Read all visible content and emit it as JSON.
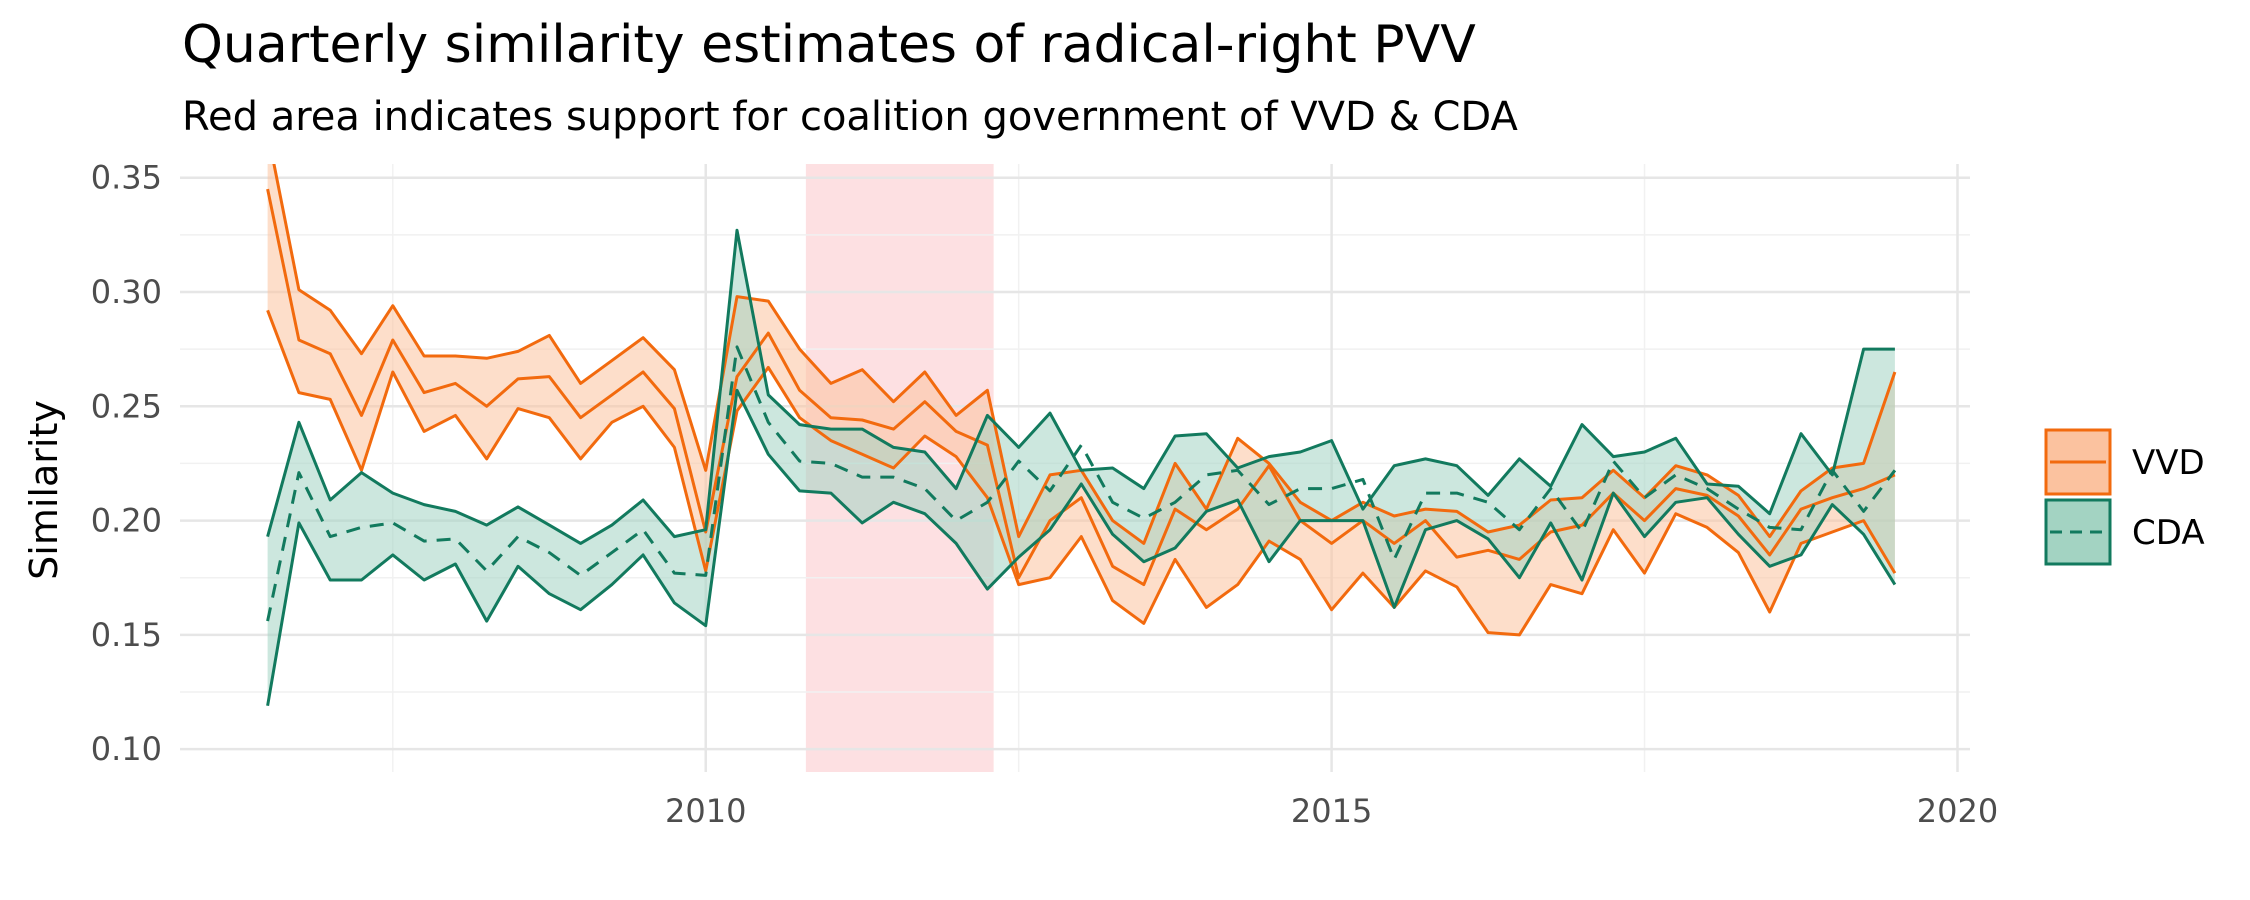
{
  "chart_data": {
    "type": "area",
    "title": "Quarterly similarity estimates of radical-right PVV",
    "subtitle": "Red area indicates support for coalition government of VVD & CDA",
    "xlabel": "",
    "ylabel": "Similarity",
    "xlim": [
      2005.8,
      2020.1
    ],
    "ylim": [
      0.09,
      0.356
    ],
    "x_ticks": [
      2010,
      2015,
      2020
    ],
    "x_tick_labels": [
      "2010",
      "2015",
      "2020"
    ],
    "y_ticks": [
      0.1,
      0.15,
      0.2,
      0.25,
      0.3,
      0.35
    ],
    "y_tick_labels": [
      "0.10",
      "0.15",
      "0.20",
      "0.25",
      "0.30",
      "0.35"
    ],
    "grid": true,
    "legend_position": "right",
    "shaded_region": {
      "x_start": 2010.8,
      "x_end": 2012.3,
      "color": "#fde0e2"
    },
    "x": [
      2006.5,
      2006.75,
      2007.0,
      2007.25,
      2007.5,
      2007.75,
      2008.0,
      2008.25,
      2008.5,
      2008.75,
      2009.0,
      2009.25,
      2009.5,
      2009.75,
      2010.0,
      2010.25,
      2010.5,
      2010.75,
      2011.0,
      2011.25,
      2011.5,
      2011.75,
      2012.0,
      2012.25,
      2012.5,
      2012.75,
      2013.0,
      2013.25,
      2013.5,
      2013.75,
      2014.0,
      2014.25,
      2014.5,
      2014.75,
      2015.0,
      2015.25,
      2015.5,
      2015.75,
      2016.0,
      2016.25,
      2016.5,
      2016.75,
      2017.0,
      2017.25,
      2017.5,
      2017.75,
      2018.0,
      2018.25,
      2018.5,
      2018.75,
      2019.0,
      2019.25,
      2019.5
    ],
    "series": [
      {
        "name": "VVD",
        "line_color": "#f26a0e",
        "fill_color": "#fbc29f",
        "line_style": "solid",
        "mean": [
          0.345,
          0.279,
          0.273,
          0.246,
          0.279,
          0.256,
          0.26,
          0.25,
          0.262,
          0.263,
          0.245,
          0.255,
          0.265,
          0.249,
          0.195,
          0.263,
          0.282,
          0.257,
          0.245,
          0.244,
          0.24,
          0.252,
          0.239,
          0.233,
          0.175,
          0.2,
          0.21,
          0.18,
          0.172,
          0.205,
          0.196,
          0.205,
          0.224,
          0.2,
          0.19,
          0.2,
          0.19,
          0.2,
          0.184,
          0.187,
          0.183,
          0.195,
          0.198,
          0.212,
          0.2,
          0.214,
          0.211,
          0.202,
          0.185,
          0.205,
          0.21,
          0.214,
          0.22
        ],
        "upper": [
          0.37,
          0.301,
          0.292,
          0.273,
          0.294,
          0.272,
          0.272,
          0.271,
          0.274,
          0.281,
          0.26,
          0.27,
          0.28,
          0.266,
          0.222,
          0.298,
          0.296,
          0.275,
          0.26,
          0.266,
          0.252,
          0.265,
          0.246,
          0.257,
          0.193,
          0.22,
          0.222,
          0.2,
          0.19,
          0.225,
          0.205,
          0.236,
          0.225,
          0.208,
          0.2,
          0.208,
          0.202,
          0.205,
          0.204,
          0.195,
          0.198,
          0.209,
          0.21,
          0.222,
          0.21,
          0.224,
          0.22,
          0.211,
          0.193,
          0.213,
          0.223,
          0.225,
          0.265
        ],
        "lower": [
          0.292,
          0.256,
          0.253,
          0.222,
          0.265,
          0.239,
          0.246,
          0.227,
          0.249,
          0.245,
          0.227,
          0.243,
          0.25,
          0.232,
          0.178,
          0.248,
          0.267,
          0.245,
          0.235,
          0.229,
          0.223,
          0.237,
          0.228,
          0.21,
          0.172,
          0.175,
          0.193,
          0.165,
          0.155,
          0.183,
          0.162,
          0.172,
          0.191,
          0.183,
          0.161,
          0.177,
          0.162,
          0.178,
          0.171,
          0.151,
          0.15,
          0.172,
          0.168,
          0.196,
          0.177,
          0.203,
          0.197,
          0.186,
          0.16,
          0.19,
          0.195,
          0.2,
          0.177
        ]
      },
      {
        "name": "CDA",
        "line_color": "#127a5e",
        "fill_color": "#a3d3c2",
        "line_style": "dashed",
        "mean": [
          0.156,
          0.221,
          0.193,
          0.197,
          0.199,
          0.191,
          0.192,
          0.178,
          0.193,
          0.186,
          0.176,
          0.186,
          0.196,
          0.177,
          0.176,
          0.276,
          0.243,
          0.226,
          0.225,
          0.219,
          0.219,
          0.214,
          0.2,
          0.208,
          0.226,
          0.213,
          0.233,
          0.208,
          0.201,
          0.208,
          0.22,
          0.222,
          0.207,
          0.214,
          0.214,
          0.218,
          0.183,
          0.212,
          0.212,
          0.208,
          0.196,
          0.214,
          0.195,
          0.226,
          0.21,
          0.22,
          0.214,
          0.205,
          0.197,
          0.196,
          0.222,
          0.204,
          0.222
        ],
        "upper": [
          0.193,
          0.243,
          0.209,
          0.221,
          0.212,
          0.207,
          0.204,
          0.198,
          0.206,
          0.198,
          0.19,
          0.198,
          0.209,
          0.193,
          0.196,
          0.327,
          0.255,
          0.242,
          0.24,
          0.24,
          0.232,
          0.23,
          0.214,
          0.246,
          0.232,
          0.247,
          0.222,
          0.223,
          0.214,
          0.237,
          0.238,
          0.223,
          0.228,
          0.23,
          0.235,
          0.205,
          0.224,
          0.227,
          0.224,
          0.211,
          0.227,
          0.215,
          0.242,
          0.228,
          0.23,
          0.236,
          0.216,
          0.215,
          0.203,
          0.238,
          0.22,
          0.275,
          0.275
        ],
        "lower": [
          0.119,
          0.199,
          0.174,
          0.174,
          0.185,
          0.174,
          0.181,
          0.156,
          0.18,
          0.168,
          0.161,
          0.172,
          0.185,
          0.164,
          0.154,
          0.257,
          0.229,
          0.213,
          0.212,
          0.199,
          0.208,
          0.203,
          0.19,
          0.17,
          0.184,
          0.196,
          0.216,
          0.194,
          0.182,
          0.188,
          0.204,
          0.209,
          0.182,
          0.2,
          0.2,
          0.2,
          0.162,
          0.196,
          0.2,
          0.192,
          0.175,
          0.199,
          0.174,
          0.212,
          0.193,
          0.208,
          0.21,
          0.194,
          0.18,
          0.185,
          0.207,
          0.194,
          0.172
        ]
      }
    ]
  }
}
